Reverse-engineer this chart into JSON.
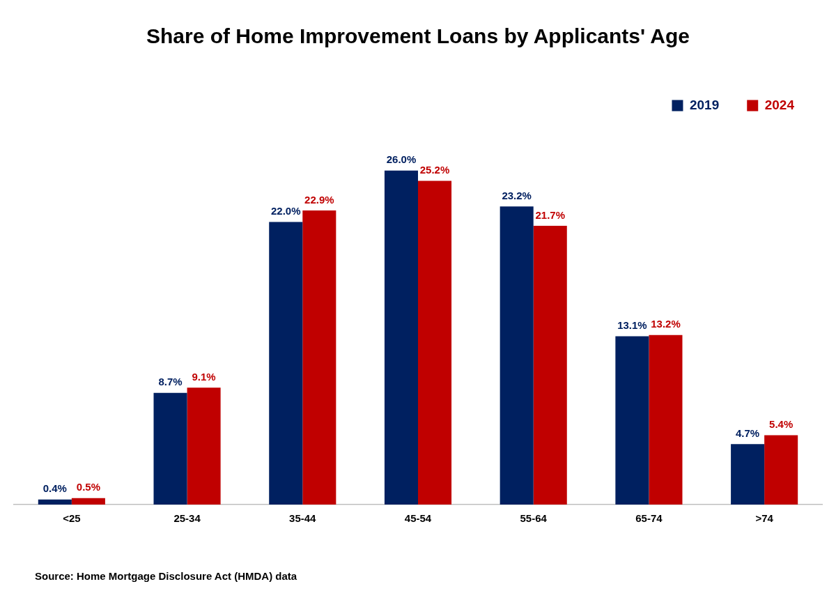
{
  "chart_data": {
    "type": "bar",
    "title": "Share of Home Improvement Loans by Applicants' Age",
    "categories": [
      "<25",
      "25-34",
      "35-44",
      "45-54",
      "55-64",
      "65-74",
      ">74"
    ],
    "series": [
      {
        "name": "2019",
        "color": "#002060",
        "values": [
          0.4,
          8.7,
          22.0,
          26.0,
          23.2,
          13.1,
          4.7
        ],
        "value_labels": [
          "0.4%",
          "8.7%",
          "22.0%",
          "26.0%",
          "23.2%",
          "13.1%",
          "4.7%"
        ]
      },
      {
        "name": "2024",
        "color": "#c00000",
        "values": [
          0.5,
          9.1,
          22.9,
          25.2,
          21.7,
          13.2,
          5.4
        ],
        "value_labels": [
          "0.5%",
          "9.1%",
          "22.9%",
          "25.2%",
          "21.7%",
          "13.2%",
          "5.4%"
        ]
      }
    ],
    "legend": "top right",
    "grid": false,
    "annotations": [
      "Source: Home Mortgage Disclosure Act (HMDA) data"
    ]
  }
}
